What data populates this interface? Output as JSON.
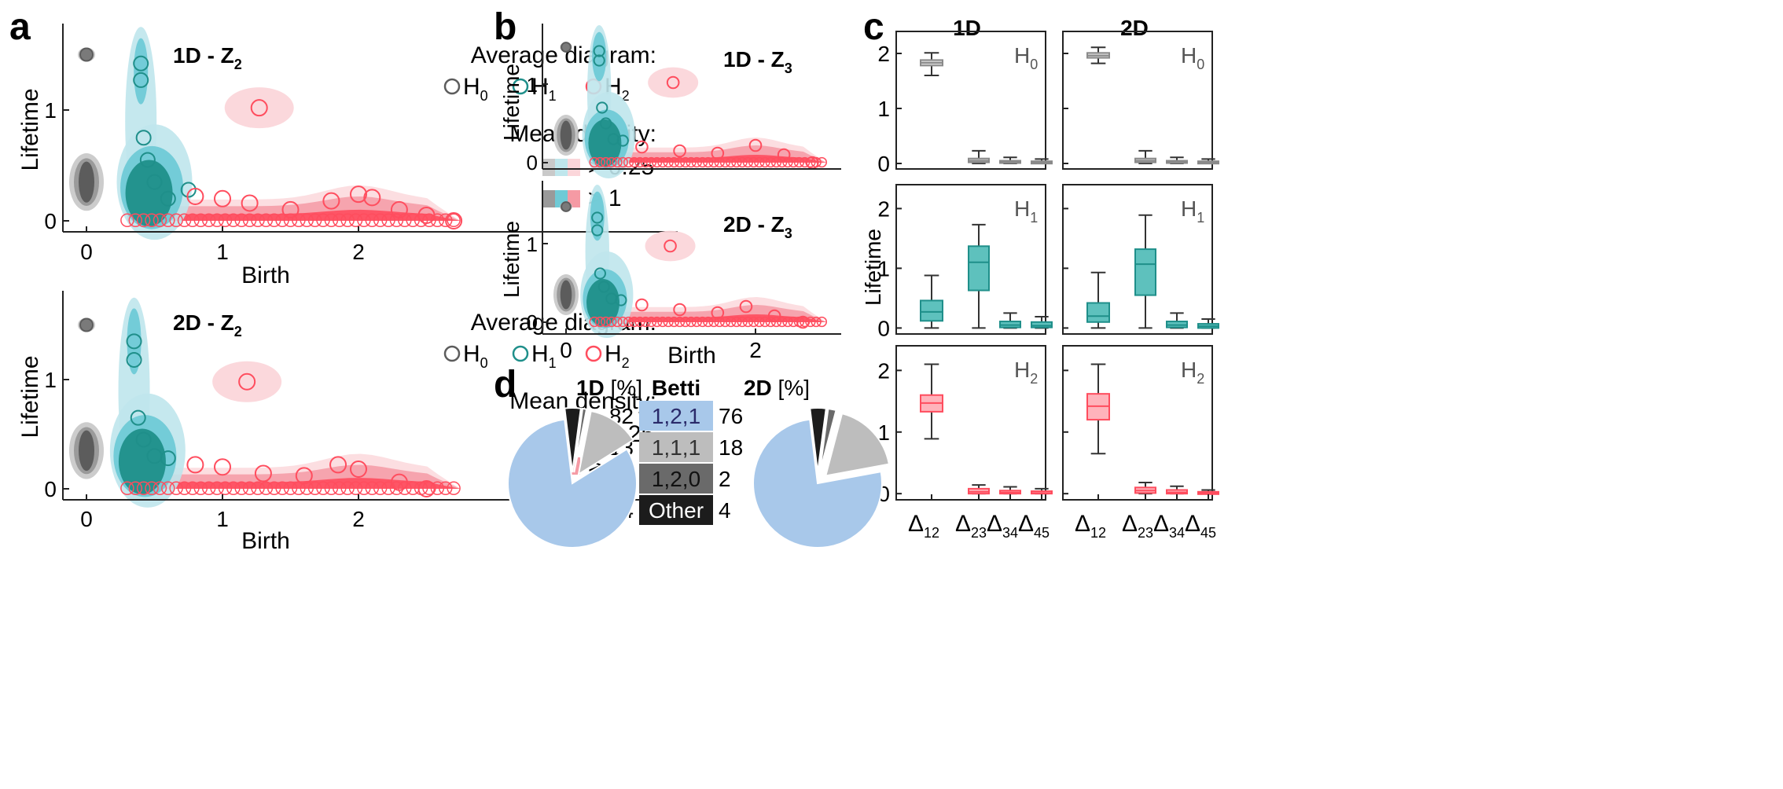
{
  "colors": {
    "h0": "#5c5c5c",
    "h0_light": "#c9c9c9",
    "h0_mid": "#9a9a9a",
    "h1": "#1f8f8a",
    "h1_light": "#bfe6ec",
    "h1_mid": "#6fcad6",
    "h2": "#ff4d5e",
    "h2_light": "#fbd6da",
    "h2_mid": "#f59aa4",
    "pie_blue": "#a8c8ea",
    "pie_lgray": "#bdbdbd",
    "pie_dgray": "#6a6a6a",
    "pie_black": "#1c1c1c"
  },
  "panels": {
    "a": {
      "letter": "a",
      "top_title": "1D - Z",
      "top_sub": "2",
      "bottom_title": "2D - Z",
      "bottom_sub": "2",
      "xlabel": "Birth",
      "ylabel": "Lifetime",
      "xticks": [
        "0",
        "1",
        "2"
      ],
      "yticks": [
        "0",
        "1"
      ]
    },
    "b": {
      "letter": "b",
      "top_title": "1D - Z",
      "top_sub": "3",
      "bottom_title": "2D - Z",
      "bottom_sub": "3",
      "xlabel": "Birth",
      "ylabel": "Lifetime",
      "xticks": [
        "0",
        "2"
      ],
      "yticks": [
        "0",
        "1"
      ]
    },
    "c": {
      "letter": "c",
      "col1": "1D",
      "col2": "2D",
      "rows": [
        "H",
        "H",
        "H"
      ],
      "row_subs": [
        "0",
        "1",
        "2"
      ],
      "ylabel": "Lifetime",
      "yticks": [
        "0",
        "1",
        "2"
      ],
      "xticks": [
        "Δ",
        "Δ",
        "Δ",
        "Δ"
      ],
      "xtick_subs": [
        "12",
        "23",
        "34",
        "45"
      ]
    },
    "d": {
      "letter": "d",
      "col_1d": "1D",
      "col_2d": "2D",
      "unit": "[%]",
      "betti_header": "Betti"
    }
  },
  "legend": {
    "avg_title": "Average diagram:",
    "h_labels": [
      "H",
      "H",
      "H"
    ],
    "h_subs": [
      "0",
      "1",
      "2"
    ],
    "density_title": "Mean density:",
    "thresh_low": "> 0.25",
    "thresh_high": "> 1"
  },
  "chart_data": [
    {
      "type": "scatter",
      "panel": "a-top",
      "title": "1D - Z2",
      "xlabel": "Birth",
      "ylabel": "Lifetime",
      "xlim": [
        -0.2,
        2.8
      ],
      "ylim": [
        -0.05,
        1.75
      ],
      "series": [
        {
          "name": "H0",
          "x": [
            0,
            0
          ],
          "y": [
            1.5,
            0.35
          ]
        },
        {
          "name": "H1",
          "x": [
            0.4,
            0.4,
            0.42,
            0.45,
            0.5,
            0.6,
            0.75
          ],
          "y": [
            1.42,
            1.27,
            0.75,
            0.55,
            0.35,
            0.2,
            0.28
          ]
        },
        {
          "name": "H2",
          "x": [
            1.27,
            0.8,
            1.0,
            1.2,
            1.5,
            1.8,
            2.0,
            2.1,
            2.3,
            2.5,
            2.7
          ],
          "y": [
            1.02,
            0.22,
            0.2,
            0.16,
            0.1,
            0.18,
            0.24,
            0.21,
            0.1,
            0.05,
            0.0
          ]
        }
      ]
    },
    {
      "type": "scatter",
      "panel": "a-bottom",
      "title": "2D - Z2",
      "xlabel": "Birth",
      "ylabel": "Lifetime",
      "xlim": [
        -0.2,
        2.8
      ],
      "ylim": [
        -0.05,
        1.75
      ],
      "series": [
        {
          "name": "H0",
          "x": [
            0,
            0
          ],
          "y": [
            1.5,
            0.35
          ]
        },
        {
          "name": "H1",
          "x": [
            0.35,
            0.35,
            0.38,
            0.42,
            0.5,
            0.6
          ],
          "y": [
            1.35,
            1.18,
            0.65,
            0.45,
            0.3,
            0.28
          ]
        },
        {
          "name": "H2",
          "x": [
            1.18,
            0.8,
            1.0,
            1.3,
            1.6,
            1.85,
            2.0,
            2.3,
            2.5
          ],
          "y": [
            0.98,
            0.22,
            0.2,
            0.14,
            0.12,
            0.22,
            0.18,
            0.06,
            0.0
          ]
        }
      ]
    },
    {
      "type": "scatter",
      "panel": "b-top",
      "title": "1D - Z3",
      "xlabel": "Birth",
      "ylabel": "Lifetime",
      "xlim": [
        -0.1,
        2.8
      ],
      "ylim": [
        -0.05,
        1.75
      ],
      "series": [
        {
          "name": "H0",
          "x": [
            0,
            0
          ],
          "y": [
            1.47,
            0.35
          ]
        },
        {
          "name": "H1",
          "x": [
            0.35,
            0.35,
            0.38,
            0.42,
            0.5,
            0.6
          ],
          "y": [
            1.42,
            1.3,
            0.7,
            0.5,
            0.3,
            0.28
          ]
        },
        {
          "name": "H2",
          "x": [
            1.13,
            0.8,
            1.2,
            1.6,
            2.0,
            2.3,
            2.6
          ],
          "y": [
            1.02,
            0.2,
            0.15,
            0.12,
            0.22,
            0.1,
            0.0
          ]
        }
      ]
    },
    {
      "type": "scatter",
      "panel": "b-bottom",
      "title": "2D - Z3",
      "xlabel": "Birth",
      "ylabel": "Lifetime",
      "xlim": [
        -0.1,
        2.8
      ],
      "ylim": [
        -0.05,
        1.75
      ],
      "series": [
        {
          "name": "H0",
          "x": [
            0,
            0
          ],
          "y": [
            1.47,
            0.35
          ]
        },
        {
          "name": "H1",
          "x": [
            0.33,
            0.33,
            0.36,
            0.4,
            0.48,
            0.58
          ],
          "y": [
            1.33,
            1.17,
            0.62,
            0.45,
            0.3,
            0.28
          ]
        },
        {
          "name": "H2",
          "x": [
            1.1,
            0.8,
            1.2,
            1.6,
            1.9,
            2.2,
            2.5
          ],
          "y": [
            0.97,
            0.22,
            0.16,
            0.12,
            0.2,
            0.08,
            0.0
          ]
        }
      ]
    },
    {
      "type": "box",
      "panel": "c",
      "ylabel": "Lifetime",
      "ylim": [
        -0.1,
        2.4
      ],
      "categories": [
        "Δ12",
        "Δ23",
        "Δ34",
        "Δ45"
      ],
      "groups": [
        {
          "dim": "1D",
          "homology": "H0",
          "boxes": [
            {
              "whislo": 1.6,
              "q1": 1.78,
              "med": 1.83,
              "q3": 1.88,
              "whishi": 2.01
            },
            {
              "whislo": 0.0,
              "q1": 0.02,
              "med": 0.05,
              "q3": 0.09,
              "whishi": 0.23
            },
            {
              "whislo": 0.0,
              "q1": 0.01,
              "med": 0.03,
              "q3": 0.05,
              "whishi": 0.11
            },
            {
              "whislo": 0.0,
              "q1": 0.01,
              "med": 0.02,
              "q3": 0.04,
              "whishi": 0.08
            }
          ]
        },
        {
          "dim": "2D",
          "homology": "H0",
          "boxes": [
            {
              "whislo": 1.82,
              "q1": 1.92,
              "med": 1.96,
              "q3": 2.01,
              "whishi": 2.11
            },
            {
              "whislo": 0.0,
              "q1": 0.02,
              "med": 0.05,
              "q3": 0.09,
              "whishi": 0.23
            },
            {
              "whislo": 0.0,
              "q1": 0.01,
              "med": 0.03,
              "q3": 0.05,
              "whishi": 0.11
            },
            {
              "whislo": 0.0,
              "q1": 0.01,
              "med": 0.02,
              "q3": 0.04,
              "whishi": 0.08
            }
          ]
        },
        {
          "dim": "1D",
          "homology": "H1",
          "boxes": [
            {
              "whislo": 0.0,
              "q1": 0.12,
              "med": 0.27,
              "q3": 0.46,
              "whishi": 0.88
            },
            {
              "whislo": 0.0,
              "q1": 0.63,
              "med": 1.1,
              "q3": 1.37,
              "whishi": 1.73
            },
            {
              "whislo": 0.0,
              "q1": 0.01,
              "med": 0.05,
              "q3": 0.11,
              "whishi": 0.25
            },
            {
              "whislo": 0.0,
              "q1": 0.01,
              "med": 0.04,
              "q3": 0.1,
              "whishi": 0.19
            }
          ]
        },
        {
          "dim": "2D",
          "homology": "H1",
          "boxes": [
            {
              "whislo": 0.0,
              "q1": 0.1,
              "med": 0.2,
              "q3": 0.42,
              "whishi": 0.93
            },
            {
              "whislo": 0.0,
              "q1": 0.55,
              "med": 1.07,
              "q3": 1.32,
              "whishi": 1.89
            },
            {
              "whislo": 0.0,
              "q1": 0.01,
              "med": 0.05,
              "q3": 0.11,
              "whishi": 0.25
            },
            {
              "whislo": 0.0,
              "q1": 0.0,
              "med": 0.03,
              "q3": 0.07,
              "whishi": 0.15
            }
          ]
        },
        {
          "dim": "1D",
          "homology": "H2",
          "boxes": [
            {
              "whislo": 0.89,
              "q1": 1.33,
              "med": 1.47,
              "q3": 1.6,
              "whishi": 2.1
            },
            {
              "whislo": 0.0,
              "q1": 0.0,
              "med": 0.03,
              "q3": 0.08,
              "whishi": 0.14
            },
            {
              "whislo": 0.0,
              "q1": 0.0,
              "med": 0.02,
              "q3": 0.05,
              "whishi": 0.11
            },
            {
              "whislo": 0.0,
              "q1": 0.0,
              "med": 0.01,
              "q3": 0.04,
              "whishi": 0.08
            }
          ]
        },
        {
          "dim": "2D",
          "homology": "H2",
          "boxes": [
            {
              "whislo": 0.65,
              "q1": 1.2,
              "med": 1.42,
              "q3": 1.62,
              "whishi": 2.1
            },
            {
              "whislo": 0.0,
              "q1": 0.01,
              "med": 0.05,
              "q3": 0.1,
              "whishi": 0.18
            },
            {
              "whislo": 0.0,
              "q1": 0.0,
              "med": 0.02,
              "q3": 0.06,
              "whishi": 0.12
            },
            {
              "whislo": 0.0,
              "q1": 0.0,
              "med": 0.01,
              "q3": 0.03,
              "whishi": 0.06
            }
          ]
        }
      ]
    },
    {
      "type": "pie",
      "panel": "d",
      "categories": [
        "1,2,1",
        "1,1,1",
        "1,2,0",
        "Other"
      ],
      "series": [
        {
          "name": "1D",
          "values": [
            82,
            13,
            1,
            4
          ]
        },
        {
          "name": "2D",
          "values": [
            76,
            18,
            2,
            4
          ]
        }
      ]
    }
  ]
}
